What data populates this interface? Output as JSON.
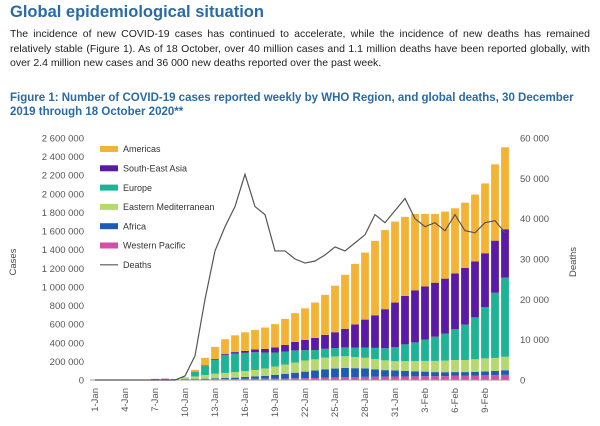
{
  "page": {
    "heading": "Global epidemiological situation",
    "paragraph": "The incidence of new COVID-19 cases has continued to accelerate, while the incidence of new deaths has remained relatively stable (Figure 1). As of 18 October, over 40 million cases and 1.1 million deaths have been reported globally, with over 2.4 million new cases and 36 000 new deaths reported over the past week.",
    "figure_caption": "Figure 1: Number of COVID-19 cases reported weekly by WHO Region, and global deaths, 30 December 2019 through 18 October 2020**"
  },
  "chart_data": {
    "type": "bar",
    "stacked": true,
    "ylabel": "Cases",
    "y2label": "Deaths",
    "ylim": [
      0,
      2600000
    ],
    "y2lim": [
      0,
      60000
    ],
    "yticks": [
      "0",
      "200 000",
      "400 000",
      "600 000",
      "800 000",
      "1 000 000",
      "1 200 000",
      "1 400 000",
      "1 600 000",
      "1 800 000",
      "2 000 000",
      "2 200 000",
      "2 400 000",
      "2 600 000"
    ],
    "y2ticks": [
      "0",
      "10 000",
      "20 000",
      "30 000",
      "40 000",
      "50 000",
      "60 000"
    ],
    "xtick_labels": [
      "1-Jan",
      "4-Jan",
      "7-Jan",
      "10-Jan",
      "13-Jan",
      "16-Jan",
      "19-Jan",
      "22-Jan",
      "25-Jan",
      "28-Jan",
      "31-Jan",
      "3-Feb",
      "6-Feb",
      "9-Feb"
    ],
    "xtick_every": 3,
    "grid": false,
    "legend_position": "top-left",
    "colors": {
      "Americas": "#f5b335",
      "South-East Asia": "#5b1aa6",
      "Europe": "#1db394",
      "Eastern Mediterranean": "#b6d86e",
      "Africa": "#1c5db3",
      "Western Pacific": "#d64fa6",
      "Deaths": "#555555"
    },
    "legend": [
      "Americas",
      "South-East Asia",
      "Europe",
      "Eastern Mediterranean",
      "Africa",
      "Western Pacific",
      "Deaths"
    ],
    "series": [
      {
        "name": "Western Pacific",
        "values": [
          0,
          0,
          0,
          0,
          2000,
          5000,
          12000,
          15000,
          10000,
          8000,
          7000,
          6000,
          8000,
          9000,
          10000,
          12000,
          13000,
          14000,
          15000,
          16000,
          18000,
          20000,
          22000,
          25000,
          28000,
          30000,
          32000,
          34000,
          35000,
          36000,
          37000,
          38000,
          39000,
          40000,
          40000,
          42000,
          45000,
          45000,
          48000,
          50000,
          52000,
          55000
        ]
      },
      {
        "name": "Africa",
        "values": [
          0,
          0,
          0,
          0,
          0,
          0,
          0,
          0,
          1000,
          3000,
          6000,
          8000,
          10000,
          12000,
          15000,
          20000,
          25000,
          30000,
          40000,
          50000,
          60000,
          70000,
          80000,
          90000,
          95000,
          100000,
          95000,
          90000,
          80000,
          70000,
          65000,
          60000,
          55000,
          50000,
          45000,
          42000,
          40000,
          40000,
          40000,
          42000,
          45000,
          50000
        ]
      },
      {
        "name": "Eastern Mediterranean",
        "values": [
          0,
          0,
          0,
          0,
          0,
          0,
          0,
          0,
          0,
          10000,
          25000,
          40000,
          50000,
          55000,
          60000,
          65000,
          70000,
          80000,
          90000,
          100000,
          110000,
          120000,
          120000,
          125000,
          130000,
          125000,
          120000,
          115000,
          110000,
          105000,
          100000,
          105000,
          110000,
          115000,
          120000,
          125000,
          130000,
          130000,
          135000,
          140000,
          140000,
          145000
        ]
      },
      {
        "name": "Europe",
        "values": [
          0,
          0,
          0,
          0,
          0,
          0,
          0,
          0,
          0,
          5000,
          50000,
          100000,
          150000,
          190000,
          200000,
          195000,
          190000,
          170000,
          150000,
          140000,
          130000,
          110000,
          100000,
          95000,
          90000,
          95000,
          100000,
          110000,
          120000,
          130000,
          150000,
          180000,
          200000,
          230000,
          260000,
          290000,
          330000,
          380000,
          450000,
          550000,
          700000,
          850000
        ]
      },
      {
        "name": "South-East Asia",
        "values": [
          0,
          0,
          0,
          0,
          0,
          0,
          0,
          0,
          0,
          0,
          2000,
          5000,
          8000,
          12000,
          15000,
          20000,
          30000,
          40000,
          55000,
          70000,
          90000,
          110000,
          130000,
          150000,
          170000,
          200000,
          250000,
          300000,
          350000,
          420000,
          480000,
          520000,
          560000,
          570000,
          580000,
          590000,
          600000,
          610000,
          600000,
          580000,
          560000,
          520000
        ]
      },
      {
        "name": "Americas",
        "values": [
          0,
          0,
          0,
          0,
          0,
          0,
          0,
          0,
          0,
          1000,
          20000,
          80000,
          130000,
          160000,
          180000,
          200000,
          210000,
          230000,
          250000,
          280000,
          310000,
          340000,
          380000,
          430000,
          500000,
          580000,
          650000,
          720000,
          800000,
          850000,
          870000,
          850000,
          820000,
          780000,
          740000,
          720000,
          700000,
          700000,
          720000,
          750000,
          820000,
          880000
        ]
      }
    ],
    "deaths": {
      "name": "Deaths",
      "values": [
        0,
        0,
        0,
        0,
        0,
        0,
        0,
        0,
        0,
        1000,
        6000,
        20000,
        32000,
        38000,
        43000,
        51000,
        43000,
        41000,
        32000,
        32000,
        30000,
        29000,
        29500,
        31000,
        33000,
        32000,
        34000,
        36000,
        41000,
        39000,
        42000,
        45000,
        40000,
        38000,
        39000,
        37000,
        41000,
        37000,
        36500,
        39000,
        39500,
        36500
      ]
    }
  }
}
